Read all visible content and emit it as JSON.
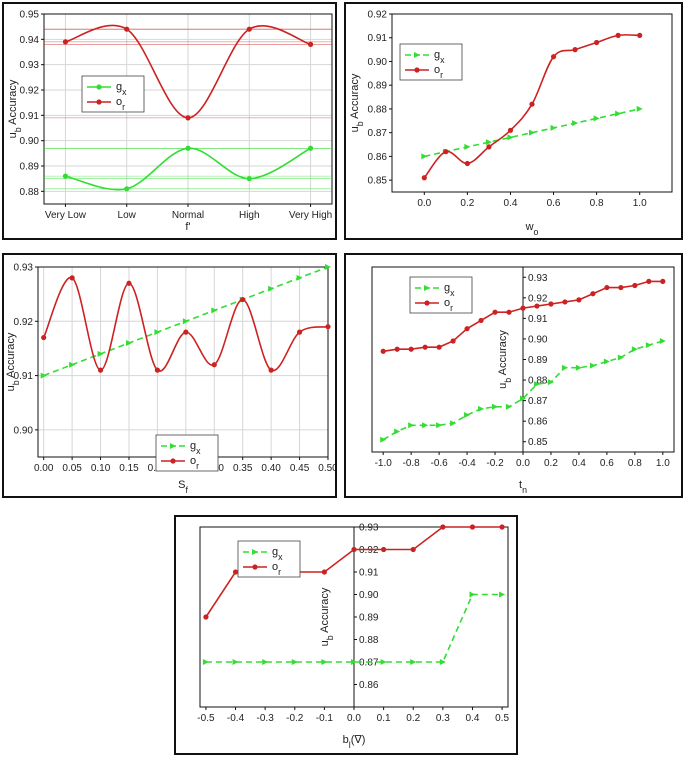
{
  "colors": {
    "gx": "#33dd33",
    "or": "#cc2222",
    "grid": "#d6d6d6",
    "frame": "#111111"
  },
  "chart_data": [
    {
      "type": "line",
      "xlabel": "f'",
      "ylabel": "u_b Accuracy",
      "categories": [
        "Very Low",
        "Low",
        "Normal",
        "High",
        "Very High"
      ],
      "ylim": [
        0.875,
        0.95
      ],
      "yticks": [
        "0.88",
        "0.89",
        "0.90",
        "0.91",
        "0.92",
        "0.93",
        "0.94",
        "0.95"
      ],
      "legend": "middle-left",
      "grid": true,
      "series": [
        {
          "name": "g_x",
          "values": [
            0.886,
            0.881,
            0.897,
            0.885,
            0.897
          ],
          "dashed": false
        },
        {
          "name": "o_r",
          "values": [
            0.939,
            0.944,
            0.909,
            0.944,
            0.938
          ],
          "dashed": false
        }
      ]
    },
    {
      "type": "line",
      "xlabel": "w_o",
      "ylabel": "u_b Accuracy",
      "xlim": [
        -0.15,
        1.15
      ],
      "ylim": [
        0.845,
        0.92
      ],
      "xticks": [
        "0.0",
        "0.2",
        "0.4",
        "0.6",
        "0.8",
        "1.0"
      ],
      "yticks": [
        "0.85",
        "0.86",
        "0.87",
        "0.88",
        "0.89",
        "0.90",
        "0.91",
        "0.92"
      ],
      "legend": "top-left",
      "grid": false,
      "series": [
        {
          "name": "g_x",
          "dashed": true,
          "x": [
            0.0,
            0.1,
            0.2,
            0.3,
            0.4,
            0.5,
            0.6,
            0.7,
            0.8,
            0.9,
            1.0
          ],
          "values": [
            0.86,
            0.862,
            0.864,
            0.866,
            0.868,
            0.87,
            0.872,
            0.874,
            0.876,
            0.878,
            0.88
          ]
        },
        {
          "name": "o_r",
          "dashed": false,
          "x": [
            0.0,
            0.1,
            0.2,
            0.3,
            0.4,
            0.5,
            0.6,
            0.7,
            0.8,
            0.9,
            1.0
          ],
          "values": [
            0.851,
            0.862,
            0.857,
            0.864,
            0.871,
            0.882,
            0.902,
            0.905,
            0.908,
            0.911,
            0.911
          ]
        }
      ]
    },
    {
      "type": "line",
      "xlabel": "S_f",
      "ylabel": "u_b Accuracy",
      "xlim": [
        -0.01,
        0.5
      ],
      "ylim": [
        0.895,
        0.93
      ],
      "xticks": [
        "0.00",
        "0.05",
        "0.10",
        "0.15",
        "0.20",
        "0.25",
        "0.30",
        "0.35",
        "0.40",
        "0.45",
        "0.50"
      ],
      "yticks": [
        "0.90",
        "0.91",
        "0.92",
        "0.93"
      ],
      "legend": "bottom-center",
      "grid": true,
      "series": [
        {
          "name": "g_x",
          "dashed": true,
          "x": [
            0.0,
            0.05,
            0.1,
            0.15,
            0.2,
            0.25,
            0.3,
            0.35,
            0.4,
            0.45,
            0.5
          ],
          "values": [
            0.91,
            0.912,
            0.914,
            0.916,
            0.918,
            0.92,
            0.922,
            0.924,
            0.926,
            0.928,
            0.93
          ]
        },
        {
          "name": "o_r",
          "dashed": false,
          "x": [
            0.0,
            0.05,
            0.1,
            0.15,
            0.2,
            0.25,
            0.3,
            0.35,
            0.4,
            0.45,
            0.5
          ],
          "values": [
            0.917,
            0.928,
            0.911,
            0.927,
            0.911,
            0.918,
            0.912,
            0.924,
            0.911,
            0.918,
            0.919
          ]
        }
      ]
    },
    {
      "type": "line",
      "xlabel": "t_n",
      "ylabel": "u_b Accuracy",
      "xlim": [
        -1.08,
        1.08
      ],
      "ylim": [
        0.845,
        0.935
      ],
      "xticks": [
        "-1.0",
        "-0.8",
        "-0.6",
        "-0.4",
        "-0.2",
        "0.0",
        "0.2",
        "0.4",
        "0.6",
        "0.8",
        "1.0"
      ],
      "yticks": [
        "0.85",
        "0.86",
        "0.87",
        "0.88",
        "0.89",
        "0.90",
        "0.91",
        "0.92",
        "0.93"
      ],
      "legend": "top-left",
      "grid": false,
      "series": [
        {
          "name": "g_x",
          "dashed": true,
          "x": [
            -1.0,
            -0.9,
            -0.8,
            -0.7,
            -0.6,
            -0.5,
            -0.4,
            -0.3,
            -0.2,
            -0.1,
            0.0,
            0.1,
            0.2,
            0.3,
            0.4,
            0.5,
            0.6,
            0.7,
            0.8,
            0.9,
            1.0
          ],
          "values": [
            0.851,
            0.855,
            0.858,
            0.858,
            0.858,
            0.859,
            0.863,
            0.866,
            0.867,
            0.867,
            0.871,
            0.878,
            0.879,
            0.886,
            0.886,
            0.887,
            0.889,
            0.891,
            0.895,
            0.897,
            0.899
          ]
        },
        {
          "name": "o_r",
          "dashed": false,
          "x": [
            -1.0,
            -0.9,
            -0.8,
            -0.7,
            -0.6,
            -0.5,
            -0.4,
            -0.3,
            -0.2,
            -0.1,
            0.0,
            0.1,
            0.2,
            0.3,
            0.4,
            0.5,
            0.6,
            0.7,
            0.8,
            0.9,
            1.0
          ],
          "values": [
            0.894,
            0.895,
            0.895,
            0.896,
            0.896,
            0.899,
            0.905,
            0.909,
            0.913,
            0.913,
            0.915,
            0.916,
            0.917,
            0.918,
            0.919,
            0.922,
            0.925,
            0.925,
            0.926,
            0.928,
            0.928
          ]
        }
      ]
    },
    {
      "type": "line",
      "xlabel": "b_l(∇)",
      "ylabel": "u_b Accuracy",
      "xlim": [
        -0.52,
        0.52
      ],
      "ylim": [
        0.85,
        0.93
      ],
      "xticks": [
        "-0.5",
        "-0.4",
        "-0.3",
        "-0.2",
        "-0.1",
        "0.0",
        "0.1",
        "0.2",
        "0.3",
        "0.4",
        "0.5"
      ],
      "yticks": [
        "0.86",
        "0.87",
        "0.88",
        "0.89",
        "0.90",
        "0.91",
        "0.92",
        "0.93"
      ],
      "legend": "top-left",
      "grid": false,
      "series": [
        {
          "name": "g_x",
          "dashed": true,
          "x": [
            -0.5,
            -0.4,
            -0.3,
            -0.2,
            -0.1,
            0.0,
            0.1,
            0.2,
            0.3,
            0.4,
            0.5
          ],
          "values": [
            0.87,
            0.87,
            0.87,
            0.87,
            0.87,
            0.87,
            0.87,
            0.87,
            0.87,
            0.9,
            0.9
          ]
        },
        {
          "name": "o_r",
          "dashed": false,
          "x": [
            -0.5,
            -0.4,
            -0.3,
            -0.2,
            -0.1,
            0.0,
            0.1,
            0.2,
            0.3,
            0.4,
            0.5
          ],
          "values": [
            0.89,
            0.91,
            0.91,
            0.91,
            0.91,
            0.92,
            0.92,
            0.92,
            0.93,
            0.93,
            0.93
          ]
        }
      ]
    }
  ]
}
